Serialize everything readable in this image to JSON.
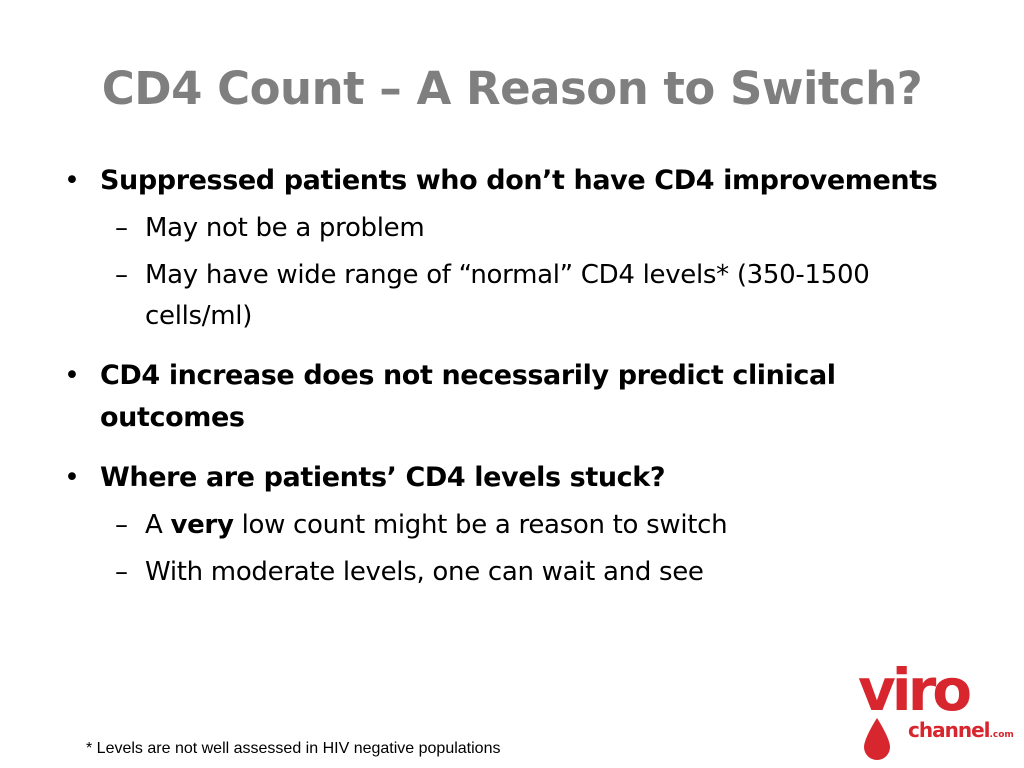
{
  "title": "CD4 Count – A Reason to Switch?",
  "bullets": [
    {
      "text": "Suppressed patients who don’t have CD4 improvements",
      "subs": [
        "May not be a problem",
        "May have wide range of “normal” CD4 levels* (350-1500 cells/ml)"
      ]
    },
    {
      "text": "CD4 increase does not necessarily predict clinical outcomes",
      "subs": []
    },
    {
      "text": "Where are patients’ CD4 levels stuck?",
      "subs": [
        {
          "prefix": "A ",
          "emphasis": "very",
          "suffix": " low count might be a reason to switch"
        },
        "With moderate levels, one can wait and see"
      ]
    }
  ],
  "bullet_glyph": "•",
  "dash_glyph": "–",
  "footnote": "* Levels are not well assessed in HIV negative populations",
  "logo": {
    "word1": "viro",
    "word2": "channel",
    "suffix": ".com",
    "color": "#d8262e"
  },
  "colors": {
    "title": "#7f7f7f",
    "text": "#000000",
    "background": "#ffffff"
  }
}
